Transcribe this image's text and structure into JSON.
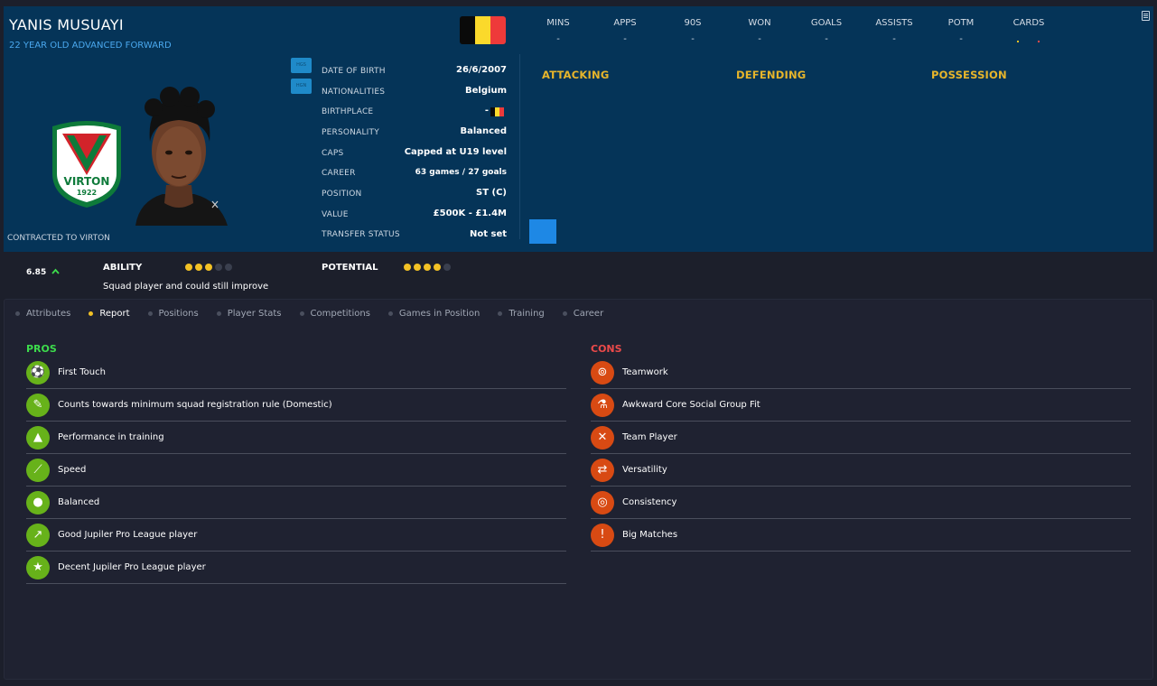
{
  "player": {
    "name": "YANIS MUSUAYI",
    "subtitle": "22 YEAR OLD ADVANCED FORWARD",
    "contracted": "CONTRACTED TO VIRTON",
    "nation_flag": [
      "#0a0a0a",
      "#fbd92b",
      "#ee3a3a"
    ]
  },
  "club_badge": {
    "text": "VIRTON",
    "year": "1922",
    "icon": "club-crest-icon"
  },
  "header_buttons": [
    "HGS",
    "HGN"
  ],
  "stats": {
    "headers": [
      "MINS",
      "APPS",
      "90S",
      "WON",
      "GOALS",
      "ASSISTS",
      "POTM",
      "CARDS"
    ],
    "values": [
      "-",
      "-",
      "-",
      "-",
      "-",
      "-",
      "-",
      ""
    ]
  },
  "info": [
    {
      "label": "DATE OF BIRTH",
      "value": "26/6/2007"
    },
    {
      "label": "NATIONALITIES",
      "value": "Belgium"
    },
    {
      "label": "BIRTHPLACE",
      "value": "-"
    },
    {
      "label": "PERSONALITY",
      "value": "Balanced"
    },
    {
      "label": "CAPS",
      "value": "Capped at U19 level"
    },
    {
      "label": "CAREER",
      "value": "63 games /  27  goals"
    },
    {
      "label": "POSITION",
      "value": "ST (C)"
    },
    {
      "label": "VALUE",
      "value": "£500K - £1.4M"
    },
    {
      "label": "TRANSFER STATUS",
      "value": "Not set"
    }
  ],
  "sections": {
    "attacking": "ATTACKING",
    "defending": "DEFENDING",
    "possession": "POSSESSION"
  },
  "rating": {
    "value": "6.85",
    "trend_icon": "arrow-up-icon"
  },
  "ability": {
    "label": "ABILITY",
    "stars": 3,
    "max": 5,
    "description": "Squad player and could still improve"
  },
  "potential": {
    "label": "POTENTIAL",
    "stars": 4,
    "max": 5
  },
  "tabs": [
    "Attributes",
    "Report",
    "Positions",
    "Player Stats",
    "Competitions",
    "Games in Position",
    "Training",
    "Career"
  ],
  "active_tab": "Report",
  "pros": {
    "title": "PROS",
    "color": "#3ddc4c",
    "items": [
      {
        "label": "First Touch",
        "icon": "ball-control-icon"
      },
      {
        "label": "Counts towards minimum squad registration rule (Domestic)",
        "icon": "registration-icon"
      },
      {
        "label": "Performance in training",
        "icon": "training-cone-icon"
      },
      {
        "label": "Speed",
        "icon": "speed-icon"
      },
      {
        "label": "Balanced",
        "icon": "personality-head-icon"
      },
      {
        "label": "Good Jupiler Pro League player",
        "icon": "trend-up-icon"
      },
      {
        "label": "Decent Jupiler Pro League player",
        "icon": "star-icon"
      }
    ]
  },
  "cons": {
    "title": "CONS",
    "color": "#ec4a4a",
    "items": [
      {
        "label": "Teamwork",
        "icon": "teamwork-icon"
      },
      {
        "label": "Awkward Core Social Group Fit",
        "icon": "flask-icon"
      },
      {
        "label": "Team Player",
        "icon": "tactics-icon"
      },
      {
        "label": "Versatility",
        "icon": "handshake-icon"
      },
      {
        "label": "Consistency",
        "icon": "target-icon"
      },
      {
        "label": "Big Matches",
        "icon": "big-match-icon"
      }
    ]
  }
}
